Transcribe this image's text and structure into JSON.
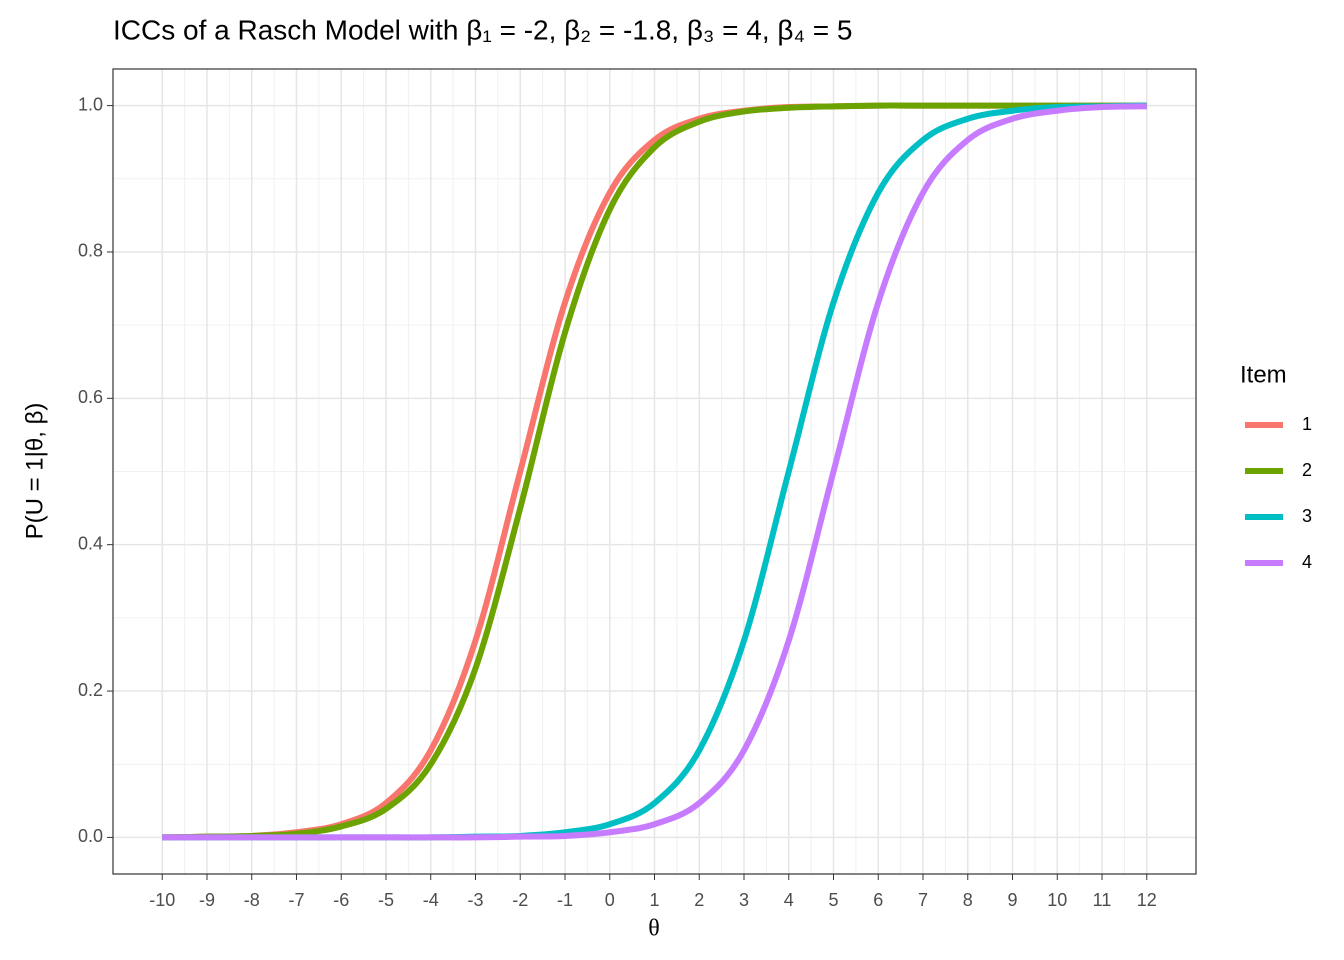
{
  "chart_data": {
    "type": "line",
    "title": "ICCs of a Rasch Model with β₁ = -2, β₂ = -1.8, β₃ = 4, β₄ = 5",
    "x_label": "θ",
    "y_label": "P(U = 1|θ, β)",
    "legend_title": "Item",
    "legend_position": "right",
    "grid": true,
    "x": [
      -10,
      -9,
      -8,
      -7,
      -6,
      -5,
      -4,
      -3,
      -2,
      -1,
      0,
      1,
      2,
      3,
      4,
      5,
      6,
      7,
      8,
      9,
      10,
      11,
      12
    ],
    "series": [
      {
        "name": "1",
        "color": "#F8766D",
        "values": [
          0.0,
          0.001,
          0.002,
          0.007,
          0.018,
          0.047,
          0.119,
          0.269,
          0.5,
          0.731,
          0.881,
          0.953,
          0.982,
          0.993,
          0.998,
          0.999,
          1,
          1,
          1,
          1,
          1,
          1,
          1
        ]
      },
      {
        "name": "2",
        "color": "#6DA300",
        "values": [
          0.0,
          0.001,
          0.002,
          0.005,
          0.015,
          0.039,
          0.1,
          0.231,
          0.45,
          0.69,
          0.858,
          0.943,
          0.978,
          0.992,
          0.997,
          0.999,
          1,
          1,
          1,
          1,
          1,
          1,
          1
        ]
      },
      {
        "name": "3",
        "color": "#00BFC4",
        "values": [
          0,
          0,
          0,
          0,
          0,
          0,
          0,
          0.001,
          0.002,
          0.007,
          0.018,
          0.047,
          0.119,
          0.269,
          0.5,
          0.731,
          0.881,
          0.953,
          0.982,
          0.993,
          0.998,
          0.999,
          1
        ]
      },
      {
        "name": "4",
        "color": "#C77CFF",
        "values": [
          0,
          0,
          0,
          0,
          0,
          0,
          0,
          0,
          0.001,
          0.002,
          0.007,
          0.018,
          0.047,
          0.119,
          0.269,
          0.5,
          0.731,
          0.881,
          0.953,
          0.982,
          0.993,
          0.998,
          0.999
        ]
      }
    ],
    "xlim": [
      -11.1,
      13.1
    ],
    "ylim": [
      -0.05,
      1.05
    ],
    "xticks": [
      -10,
      -9,
      -8,
      -7,
      -6,
      -5,
      -4,
      -3,
      -2,
      -1,
      0,
      1,
      2,
      3,
      4,
      5,
      6,
      7,
      8,
      9,
      10,
      11,
      12
    ],
    "yticks": [
      {
        "value": 0,
        "label": "0.0"
      },
      0.2,
      0.4,
      0.6,
      0.8,
      {
        "value": 1,
        "label": "1.0"
      }
    ]
  }
}
